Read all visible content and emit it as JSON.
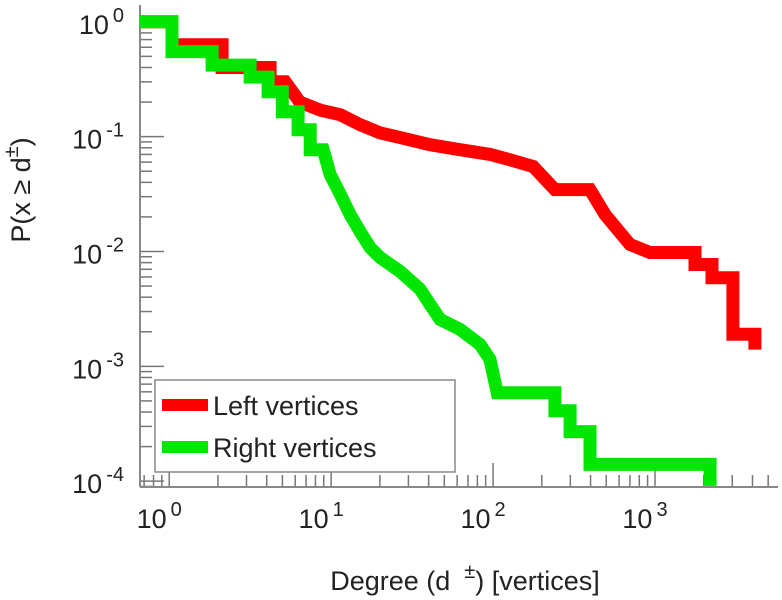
{
  "chart_data": {
    "type": "line",
    "xscale": "log",
    "yscale": "log",
    "xlabel": "Degree (d",
    "xlabel_sup": "±",
    "xlabel_tail": ") [vertices]",
    "ylabel": "P(x ≥ d",
    "ylabel_sup": "±",
    "ylabel_tail": ")",
    "xlim": [
      0.66,
      5750
    ],
    "ylim": [
      8.9e-05,
      1.4
    ],
    "x_ticks": [
      {
        "base": "10",
        "exp": "0",
        "value": 1
      },
      {
        "base": "10",
        "exp": "1",
        "value": 10
      },
      {
        "base": "10",
        "exp": "2",
        "value": 100
      },
      {
        "base": "10",
        "exp": "3",
        "value": 1000
      }
    ],
    "y_ticks": [
      {
        "base": "10",
        "exp": "0",
        "value": 1
      },
      {
        "base": "10",
        "exp": "-1",
        "value": 0.1
      },
      {
        "base": "10",
        "exp": "-2",
        "value": 0.01
      },
      {
        "base": "10",
        "exp": "-3",
        "value": 0.001
      },
      {
        "base": "10",
        "exp": "-4",
        "value": 0.0001
      }
    ],
    "legend_position": "bottom-left",
    "series": [
      {
        "name": "Left vertices",
        "color": "#ff0000",
        "points": [
          [
            0.66,
            1
          ],
          [
            1.04,
            1
          ],
          [
            1.04,
            0.63
          ],
          [
            2.12,
            0.63
          ],
          [
            2.12,
            0.4
          ],
          [
            4.2,
            0.4
          ],
          [
            4.2,
            0.3
          ],
          [
            5.2,
            0.3
          ],
          [
            6.4,
            0.2
          ],
          [
            8.6,
            0.17
          ],
          [
            11.4,
            0.155
          ],
          [
            15.1,
            0.127
          ],
          [
            20,
            0.108
          ],
          [
            26.7,
            0.098
          ],
          [
            40.8,
            0.085
          ],
          [
            62.5,
            0.077
          ],
          [
            95.7,
            0.07
          ],
          [
            127,
            0.063
          ],
          [
            177,
            0.055
          ],
          [
            241,
            0.0346
          ],
          [
            397,
            0.0346
          ],
          [
            491,
            0.021
          ],
          [
            701,
            0.0115
          ],
          [
            932,
            0.0098
          ],
          [
            1766,
            0.0098
          ],
          [
            1766,
            0.0077
          ],
          [
            2250,
            0.0077
          ],
          [
            2250,
            0.0059
          ],
          [
            3030,
            0.0059
          ],
          [
            3030,
            0.0019
          ],
          [
            4140,
            0.0019
          ],
          [
            4140,
            0.0014
          ]
        ]
      },
      {
        "name": "Right vertices",
        "color": "#00e600",
        "points": [
          [
            0.66,
            1
          ],
          [
            1.04,
            1
          ],
          [
            1.04,
            0.55
          ],
          [
            1.84,
            0.55
          ],
          [
            1.84,
            0.42
          ],
          [
            3.16,
            0.42
          ],
          [
            3.16,
            0.33
          ],
          [
            4.08,
            0.33
          ],
          [
            4.08,
            0.246
          ],
          [
            4.99,
            0.246
          ],
          [
            4.99,
            0.165
          ],
          [
            6.25,
            0.165
          ],
          [
            6.25,
            0.115
          ],
          [
            7.42,
            0.115
          ],
          [
            7.42,
            0.077
          ],
          [
            8.93,
            0.077
          ],
          [
            9.86,
            0.0467
          ],
          [
            11.4,
            0.0313
          ],
          [
            13.1,
            0.021
          ],
          [
            15.1,
            0.0149
          ],
          [
            17.4,
            0.0108
          ],
          [
            20,
            0.0089
          ],
          [
            26.7,
            0.0067
          ],
          [
            35.4,
            0.0047
          ],
          [
            40.8,
            0.00346
          ],
          [
            47.1,
            0.00256
          ],
          [
            62.5,
            0.0021
          ],
          [
            83.2,
            0.00155
          ],
          [
            95.7,
            0.00115
          ],
          [
            106,
            0.00059
          ],
          [
            241,
            0.00059
          ],
          [
            241,
            0.00041
          ],
          [
            299,
            0.00041
          ],
          [
            299,
            0.00027
          ],
          [
            397,
            0.00027
          ],
          [
            397,
            0.00014
          ],
          [
            2190,
            0.00014
          ],
          [
            2190,
            9.1e-05
          ]
        ]
      }
    ]
  }
}
